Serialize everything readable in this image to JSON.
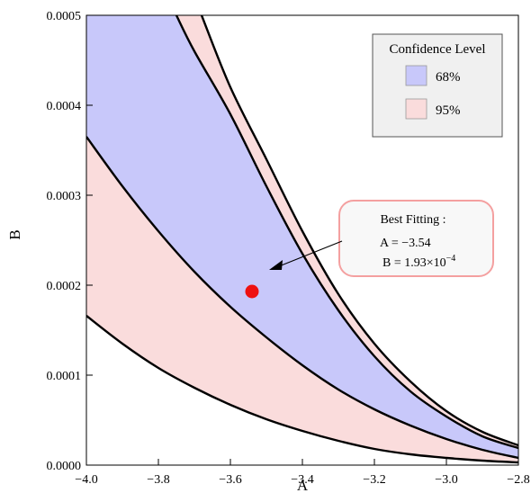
{
  "chart_data": {
    "type": "area",
    "xlabel": "A",
    "ylabel": "B",
    "xlim": [
      -4.0,
      -2.8
    ],
    "ylim": [
      0.0,
      0.0005
    ],
    "xticks": [
      -4.0,
      -3.8,
      -3.6,
      -3.4,
      -3.2,
      -3.0,
      -2.8
    ],
    "xtick_labels": [
      "−4.0",
      "−3.8",
      "−3.6",
      "−3.4",
      "−3.2",
      "−3.0",
      "−2.8"
    ],
    "yticks": [
      0.0,
      0.0001,
      0.0002,
      0.0003,
      0.0004,
      0.0005
    ],
    "ytick_labels": [
      "0.0000",
      "0.0001",
      "0.0002",
      "0.0003",
      "0.0004",
      "0.0005"
    ],
    "grid": false,
    "contours": [
      {
        "level": "95% outer",
        "x": [
          -3.68,
          -3.6,
          -3.5,
          -3.4,
          -3.3,
          -3.2,
          -3.1,
          -3.0,
          -2.9,
          -2.8
        ],
        "y": [
          0.0005,
          0.00042,
          0.00034,
          0.00026,
          0.00019,
          0.000135,
          9.3e-05,
          6e-05,
          3.7e-05,
          2.2e-05
        ]
      },
      {
        "level": "68% outer",
        "x": [
          -3.75,
          -3.7,
          -3.6,
          -3.5,
          -3.4,
          -3.3,
          -3.2,
          -3.1,
          -3.0,
          -2.9,
          -2.8
        ],
        "y": [
          0.0005,
          0.00046,
          0.00039,
          0.00031,
          0.000235,
          0.000172,
          0.000121,
          8.2e-05,
          5.4e-05,
          3.2e-05,
          1.9e-05
        ]
      },
      {
        "level": "68% inner",
        "x": [
          -4.0,
          -3.9,
          -3.8,
          -3.7,
          -3.6,
          -3.5,
          -3.4,
          -3.3,
          -3.2,
          -3.1,
          -3.0,
          -2.9,
          -2.8
        ],
        "y": [
          0.000365,
          0.00031,
          0.00026,
          0.000215,
          0.000176,
          0.000142,
          0.000111,
          8.4e-05,
          6.2e-05,
          4.4e-05,
          2.9e-05,
          1.7e-05,
          8e-06
        ]
      },
      {
        "level": "95% inner",
        "x": [
          -4.0,
          -3.9,
          -3.8,
          -3.7,
          -3.6,
          -3.5,
          -3.4,
          -3.3,
          -3.2,
          -3.1,
          -3.0,
          -2.9,
          -2.8
        ],
        "y": [
          0.000166,
          0.000135,
          0.000108,
          8.6e-05,
          6.7e-05,
          5.1e-05,
          3.8e-05,
          2.7e-05,
          1.8e-05,
          1.2e-05,
          8e-06,
          5e-06,
          3e-06
        ]
      }
    ],
    "best_fit": {
      "x": -3.54,
      "y": 0.000193
    },
    "legend": {
      "title": "Confidence Level",
      "entries": [
        {
          "label": "68%",
          "color": "#c8c8fa"
        },
        {
          "label": "95%",
          "color": "#fadcdc"
        }
      ],
      "placement": "top-right"
    },
    "annotation": {
      "title": "Best Fitting :",
      "line1": "A = −3.54",
      "line2_prefix": "B = 1.93×10",
      "line2_exp": "−4"
    },
    "colors": {
      "ci68": "#c8c8fa",
      "ci95": "#fadcdc",
      "point": "#ee1111",
      "annotation_border": "#f4a0a0",
      "legend_bg": "#f0f0f0",
      "contour": "#000000"
    }
  }
}
